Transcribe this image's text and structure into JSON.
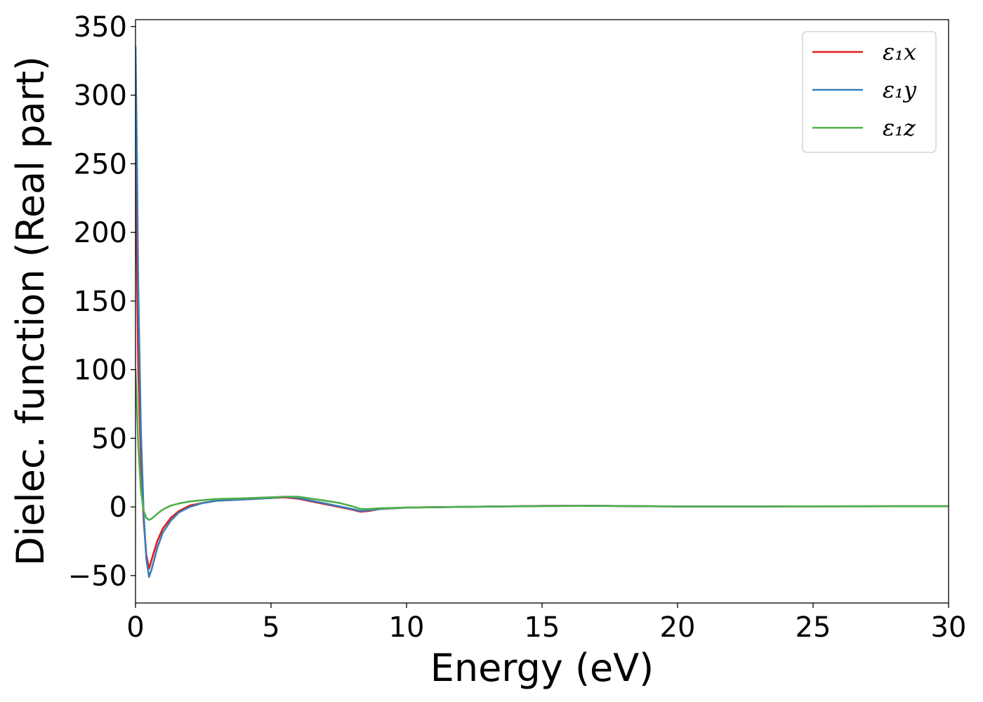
{
  "chart_data": {
    "type": "line",
    "title": "",
    "xlabel": "Energy (eV)",
    "ylabel": "Dielec. function (Real part)",
    "xlim": [
      0,
      30
    ],
    "ylim": [
      -70,
      355
    ],
    "xticks": [
      0,
      5,
      10,
      15,
      20,
      25,
      30
    ],
    "yticks": [
      -50,
      0,
      50,
      100,
      150,
      200,
      250,
      300,
      350
    ],
    "xtick_labels": [
      "0",
      "5",
      "10",
      "15",
      "20",
      "25",
      "30"
    ],
    "ytick_labels": [
      "−50",
      "0",
      "50",
      "100",
      "150",
      "200",
      "250",
      "300",
      "350"
    ],
    "grid": false,
    "legend_position": "top-right",
    "series": [
      {
        "name": "ε₁x",
        "color": "#e41a1c",
        "x": [
          0,
          0.05,
          0.1,
          0.2,
          0.3,
          0.4,
          0.5,
          0.6,
          0.8,
          1.0,
          1.3,
          1.6,
          2.0,
          2.5,
          3.0,
          4.0,
          5.0,
          5.5,
          6.0,
          6.5,
          7.0,
          7.5,
          8.0,
          8.3,
          8.6,
          9.0,
          10,
          12,
          14,
          15,
          17,
          19,
          20,
          22,
          25,
          28,
          30
        ],
        "y": [
          255,
          180,
          100,
          35,
          -10,
          -35,
          -45,
          -38,
          -25,
          -16,
          -8,
          -3,
          1,
          3,
          4.5,
          5.5,
          6.5,
          7,
          6,
          4,
          2,
          0,
          -2,
          -3.5,
          -3,
          -1.5,
          -0.5,
          0,
          0.5,
          0.8,
          0.8,
          0.5,
          0.3,
          0.3,
          0.4,
          0.5,
          0.5
        ]
      },
      {
        "name": "ε₁y",
        "color": "#377eb8",
        "x": [
          0,
          0.05,
          0.1,
          0.2,
          0.3,
          0.4,
          0.5,
          0.6,
          0.8,
          1.0,
          1.3,
          1.6,
          2.0,
          2.5,
          3.0,
          4.0,
          5.0,
          5.5,
          6.0,
          6.5,
          7.0,
          7.5,
          8.0,
          8.3,
          8.6,
          9.0,
          10,
          12,
          14,
          15,
          17,
          19,
          20,
          22,
          25,
          28,
          30
        ],
        "y": [
          335,
          260,
          160,
          55,
          -5,
          -38,
          -51,
          -45,
          -30,
          -19,
          -10,
          -4,
          0,
          3,
          4.5,
          5.5,
          6.5,
          7.5,
          6.5,
          4.5,
          2.5,
          0.5,
          -1.5,
          -3,
          -2.5,
          -1.5,
          -0.5,
          0,
          0.5,
          0.7,
          0.8,
          0.5,
          0.3,
          0.3,
          0.4,
          0.5,
          0.5
        ]
      },
      {
        "name": "ε₁z",
        "color": "#4daf4a",
        "x": [
          0,
          0.05,
          0.1,
          0.2,
          0.3,
          0.4,
          0.5,
          0.6,
          0.8,
          1.0,
          1.3,
          1.6,
          2.0,
          2.5,
          3.0,
          4.0,
          5.0,
          5.5,
          6.0,
          6.5,
          7.0,
          7.5,
          8.0,
          8.3,
          8.6,
          9.0,
          10,
          12,
          14,
          15,
          17,
          19,
          20,
          22,
          25,
          28,
          30
        ],
        "y": [
          100,
          75,
          45,
          12,
          -3,
          -8,
          -9.5,
          -8.5,
          -5,
          -2,
          1,
          2.5,
          4,
          5,
          5.8,
          6.3,
          7,
          7.5,
          7.5,
          6,
          4.5,
          3,
          0.5,
          -1.5,
          -1.5,
          -1,
          -0.5,
          0,
          0.4,
          0.6,
          0.8,
          0.6,
          0.3,
          0.3,
          0.4,
          0.5,
          0.5
        ]
      }
    ]
  }
}
